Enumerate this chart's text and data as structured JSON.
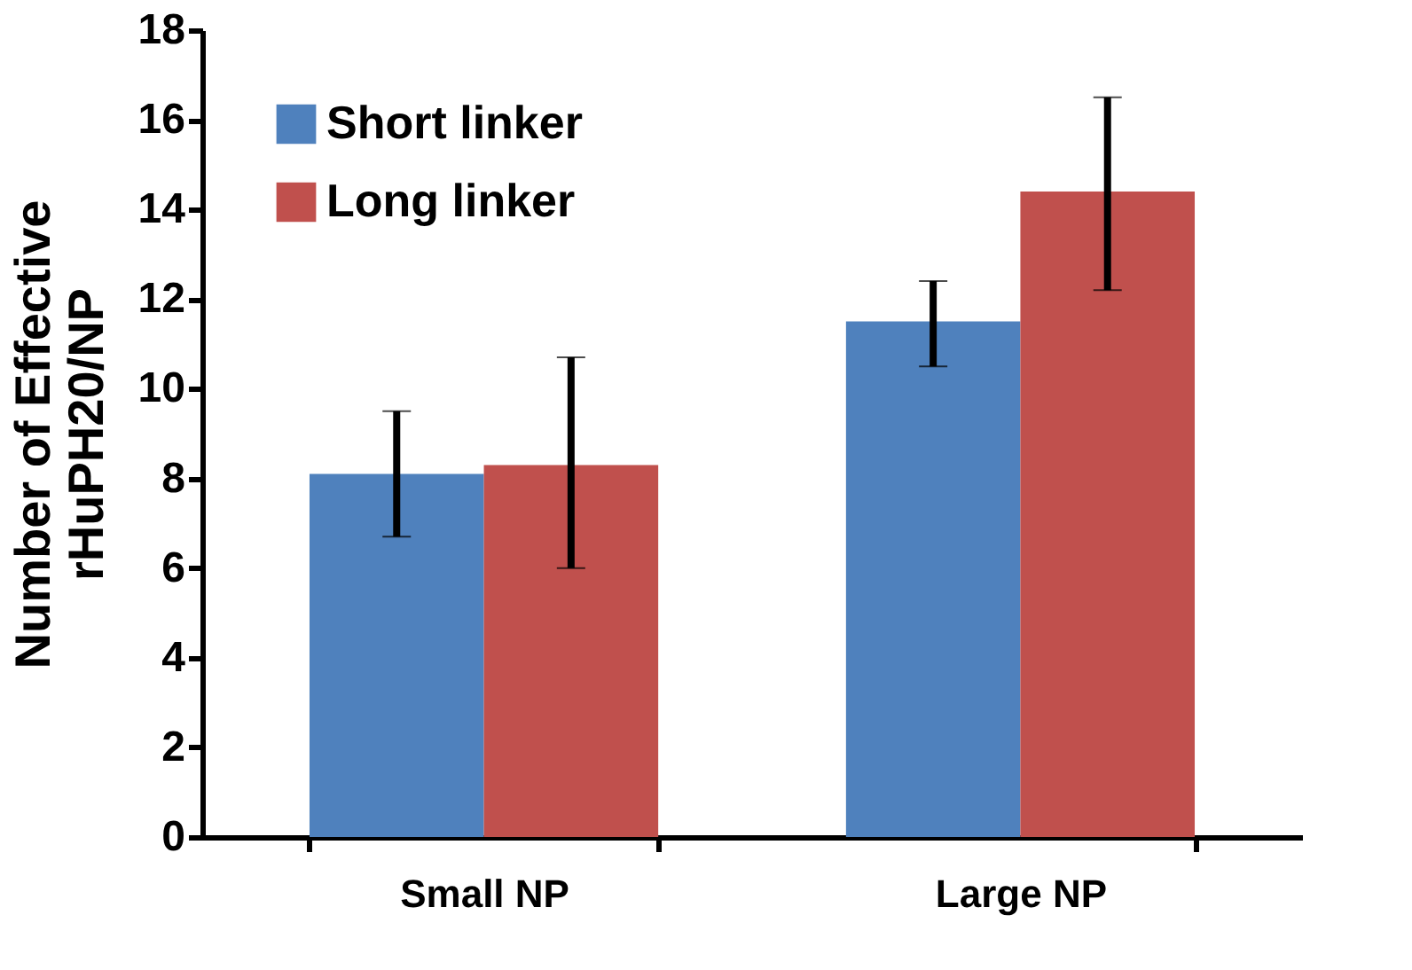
{
  "chart_data": {
    "type": "bar",
    "ylabel": "Number of Effective\nrHuPH20/NP",
    "categories": [
      "Small NP",
      "Large NP"
    ],
    "series": [
      {
        "name": "Short linker",
        "color": "#4f81bd",
        "values": [
          8.1,
          11.5
        ],
        "errors": [
          [
            6.7,
            9.5
          ],
          [
            10.5,
            12.4
          ]
        ]
      },
      {
        "name": "Long linker",
        "color": "#c0504d",
        "values": [
          8.3,
          14.4
        ],
        "errors": [
          [
            6.0,
            10.7
          ],
          [
            12.2,
            16.5
          ]
        ]
      }
    ],
    "ylim": [
      0,
      18
    ],
    "yticks": [
      0,
      2,
      4,
      6,
      8,
      10,
      12,
      14,
      16,
      18
    ],
    "grid": false,
    "legend": "top left"
  }
}
